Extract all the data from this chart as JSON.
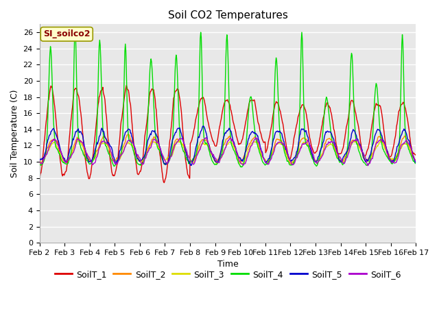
{
  "title": "Soil CO2 Temperatures",
  "xlabel": "Time",
  "ylabel": "Soil Temperature (C)",
  "annotation": "SI_soilco2",
  "ylim": [
    0,
    27
  ],
  "yticks": [
    0,
    2,
    4,
    6,
    8,
    10,
    12,
    14,
    16,
    18,
    20,
    22,
    24,
    26
  ],
  "x_labels": [
    "Feb 2",
    "Feb 3",
    "Feb 4",
    "Feb 5",
    "Feb 6",
    "Feb 7",
    "Feb 8",
    "Feb 9",
    "Feb 10",
    "Feb 11",
    "Feb 12",
    "Feb 13",
    "Feb 14",
    "Feb 15",
    "Feb 16",
    "Feb 17"
  ],
  "series_names": [
    "SoilT_1",
    "SoilT_2",
    "SoilT_3",
    "SoilT_4",
    "SoilT_5",
    "SoilT_6"
  ],
  "colors": [
    "#dd0000",
    "#ff8800",
    "#dddd00",
    "#00dd00",
    "#0000cc",
    "#aa00cc"
  ],
  "bg_color": "#e8e8e8",
  "fig_bg": "#ffffff",
  "grid_color": "#ffffff",
  "title_fontsize": 11,
  "label_fontsize": 9,
  "tick_fontsize": 8,
  "legend_fontsize": 9
}
